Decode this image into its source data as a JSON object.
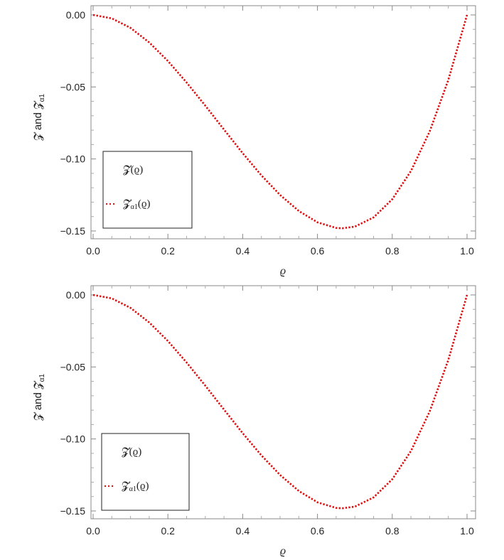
{
  "chart_data": [
    {
      "type": "line",
      "title": "",
      "xlabel": "ϱ",
      "ylabel_main": "𝓩 and 𝓩",
      "ylabel_sub": "α1",
      "xlim": [
        0,
        1
      ],
      "ylim": [
        -0.15,
        0
      ],
      "xticks": [
        "0.0",
        "0.2",
        "0.4",
        "0.6",
        "0.8",
        "1.0"
      ],
      "yticks": [
        "0.00",
        "−0.05",
        "−0.10",
        "−0.15"
      ],
      "series": [
        {
          "name": "𝓩(ϱ)",
          "color": "#ffffff",
          "style": "solid",
          "x": [
            0,
            0.05,
            0.1,
            0.15,
            0.2,
            0.25,
            0.3,
            0.35,
            0.4,
            0.45,
            0.5,
            0.55,
            0.6,
            0.65,
            0.6667,
            0.7,
            0.75,
            0.8,
            0.85,
            0.9,
            0.95,
            1.0
          ],
          "y": [
            0,
            -0.0024,
            -0.009,
            -0.0191,
            -0.032,
            -0.0469,
            -0.063,
            -0.0796,
            -0.096,
            -0.1114,
            -0.125,
            -0.1361,
            -0.144,
            -0.1479,
            -0.1481,
            -0.147,
            -0.1406,
            -0.128,
            -0.1084,
            -0.081,
            -0.0451,
            0
          ]
        },
        {
          "name": "𝓩α1(ϱ)",
          "color": "#dd1111",
          "style": "dotted",
          "x": [
            0,
            0.05,
            0.1,
            0.15,
            0.2,
            0.25,
            0.3,
            0.35,
            0.4,
            0.45,
            0.5,
            0.55,
            0.6,
            0.65,
            0.6667,
            0.7,
            0.75,
            0.8,
            0.85,
            0.9,
            0.95,
            1.0
          ],
          "y": [
            0,
            -0.0024,
            -0.009,
            -0.0191,
            -0.032,
            -0.0469,
            -0.063,
            -0.0796,
            -0.096,
            -0.1114,
            -0.125,
            -0.1361,
            -0.144,
            -0.1479,
            -0.1481,
            -0.147,
            -0.1406,
            -0.128,
            -0.1084,
            -0.081,
            -0.0451,
            0
          ]
        }
      ],
      "legend": {
        "placement": "lower-left",
        "entries": [
          "𝓩(ϱ)",
          "𝓩α1(ϱ)"
        ],
        "main": [
          "𝓩(ϱ)",
          "𝓩"
        ],
        "sub": [
          "",
          "α1"
        ],
        "tail": [
          "",
          "(ϱ)"
        ]
      }
    },
    {
      "type": "line",
      "title": "",
      "xlabel": "ϱ",
      "ylabel_main": "𝓩 and 𝓩",
      "ylabel_sub": "α1",
      "xlim": [
        0,
        1
      ],
      "ylim": [
        -0.15,
        0
      ],
      "xticks": [
        "0.0",
        "0.2",
        "0.4",
        "0.6",
        "0.8",
        "1.0"
      ],
      "yticks": [
        "0.00",
        "−0.05",
        "−0.10",
        "−0.15"
      ],
      "series": [
        {
          "name": "𝓩(ϱ)",
          "color": "#ffffff",
          "style": "solid",
          "x": [
            0,
            0.05,
            0.1,
            0.15,
            0.2,
            0.25,
            0.3,
            0.35,
            0.4,
            0.45,
            0.5,
            0.55,
            0.6,
            0.65,
            0.6667,
            0.7,
            0.75,
            0.8,
            0.85,
            0.9,
            0.95,
            1.0
          ],
          "y": [
            0,
            -0.0024,
            -0.009,
            -0.0191,
            -0.032,
            -0.0469,
            -0.063,
            -0.0796,
            -0.096,
            -0.1114,
            -0.125,
            -0.1361,
            -0.144,
            -0.1479,
            -0.1481,
            -0.147,
            -0.1406,
            -0.128,
            -0.1084,
            -0.081,
            -0.0451,
            0
          ]
        },
        {
          "name": "𝓩α1(ϱ)",
          "color": "#dd1111",
          "style": "dotted",
          "x": [
            0,
            0.05,
            0.1,
            0.15,
            0.2,
            0.25,
            0.3,
            0.35,
            0.4,
            0.45,
            0.5,
            0.55,
            0.6,
            0.65,
            0.6667,
            0.7,
            0.75,
            0.8,
            0.85,
            0.9,
            0.95,
            1.0
          ],
          "y": [
            0,
            -0.0024,
            -0.009,
            -0.0191,
            -0.032,
            -0.0469,
            -0.063,
            -0.0796,
            -0.096,
            -0.1114,
            -0.125,
            -0.1361,
            -0.144,
            -0.1479,
            -0.1481,
            -0.147,
            -0.1406,
            -0.128,
            -0.1084,
            -0.081,
            -0.0451,
            0
          ]
        }
      ],
      "legend": {
        "placement": "lower-left",
        "entries": [
          "𝓩(ϱ)",
          "𝓩α1(ϱ)"
        ],
        "main": [
          "𝓩(ϱ)",
          "𝓩"
        ],
        "sub": [
          "",
          "α1"
        ],
        "tail": [
          "",
          "(ϱ)"
        ]
      }
    }
  ]
}
